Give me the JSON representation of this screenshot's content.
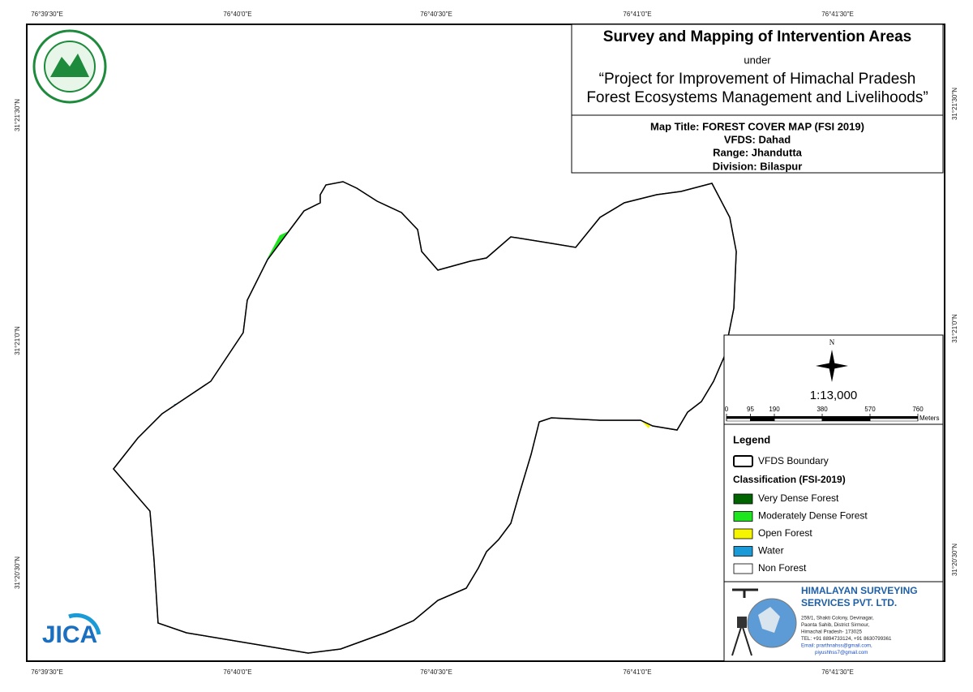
{
  "graticule": {
    "top": [
      "76°39'30\"E",
      "76°40'0\"E",
      "76°40'30\"E",
      "76°41'0\"E",
      "76°41'30\"E"
    ],
    "bottom": [
      "76°39'30\"E",
      "76°40'0\"E",
      "76°40'30\"E",
      "76°41'0\"E",
      "76°41'30\"E"
    ],
    "left": [
      "31°21'30\"N",
      "31°21'0\"N",
      "31°20'30\"N"
    ],
    "right": [
      "31°21'30\"N",
      "31°21'0\"N",
      "31°20'30\"N"
    ]
  },
  "title_box": {
    "title": "Survey and Mapping of Intervention Areas",
    "under": "under",
    "project_lines": [
      "“Project for Improvement of Himachal Pradesh",
      "Forest Ecosystems Management and Livelihoods”"
    ]
  },
  "map_info": [
    "Map Title: FOREST COVER MAP (FSI 2019)",
    "VFDS: Dahad",
    "Range: Jhandutta",
    "Division: Bilaspur"
  ],
  "north": "N",
  "scale": "1:13,000",
  "scale_bar": {
    "ticks": [
      0,
      95,
      190,
      380,
      570,
      760
    ],
    "unit": "Meters"
  },
  "legend": {
    "title": "Legend",
    "boundary": "VFDS Boundary",
    "classification_title": "Classification (FSI-2019)",
    "items": [
      {
        "label": "Very Dense Forest",
        "color": "#006400"
      },
      {
        "label": "Moderately Dense Forest",
        "color": "#1ee61e"
      },
      {
        "label": "Open Forest",
        "color": "#f5f500"
      },
      {
        "label": "Water",
        "color": "#1a9bd7"
      },
      {
        "label": "Non Forest",
        "color": "#ffffff"
      }
    ]
  },
  "company": {
    "name_lines": [
      "HIMALAYAN SURVEYING",
      "SERVICES PVT. LTD."
    ],
    "address_lines": [
      "259/1, Shakti Colony, Devinagar,",
      "Paonta Sahib, District Sirmour,",
      "Himachal Pradesh- 173025",
      "TEL: +91 8894733124, +91 8630799361",
      "Email: prarthnahss@gmail.com,",
      "piyushhss7@gmail.com"
    ]
  },
  "jica_logo": "JICA"
}
